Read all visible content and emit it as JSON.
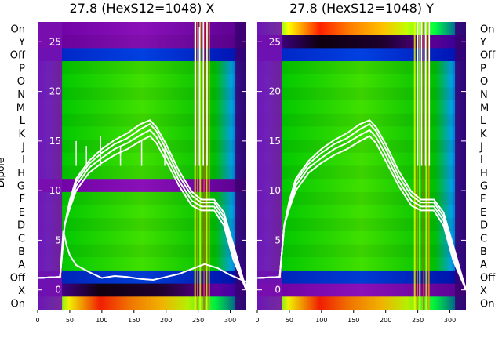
{
  "chart_data": {
    "type": "heatmap",
    "ylabel": "Dipole",
    "row_labels": [
      "On",
      "Y",
      "Off",
      "P",
      "O",
      "N",
      "M",
      "L",
      "K",
      "J",
      "I",
      "H",
      "G",
      "F",
      "E",
      "D",
      "C",
      "B",
      "A",
      "Off",
      "X",
      "On"
    ],
    "x_ticks": [
      0,
      50,
      100,
      150,
      200,
      250,
      300
    ],
    "xlim": [
      0,
      325
    ],
    "overlay_ylim": [
      -2,
      27
    ],
    "overlay_y_ticks": [
      0,
      5,
      10,
      15,
      20,
      25
    ],
    "colormap": [
      "#7a00a8",
      "#0000c8",
      "#0080ff",
      "#00c8ff",
      "#00d000",
      "#60e000",
      "#ffff00",
      "#ffa000",
      "#ff2000"
    ],
    "panels": [
      {
        "title": "27.8 (HexS12=1048) X",
        "strong_row": "X",
        "overlay_lines": [
          {
            "x": [
              0,
              35,
              42,
              50,
              60,
              80,
              100,
              120,
              140,
              160,
              175,
              185,
              200,
              220,
              240,
              255,
              265,
              275,
              290,
              305,
              325
            ],
            "y": [
              1.2,
              1.3,
              6.5,
              8.2,
              10.0,
              11.8,
              12.8,
              13.6,
              14.2,
              15.0,
              15.5,
              14.8,
              13.0,
              10.5,
              8.5,
              8.0,
              8.0,
              8.0,
              6.5,
              3.0,
              0.0
            ]
          },
          {
            "x": [
              0,
              35,
              42,
              50,
              60,
              80,
              100,
              120,
              140,
              160,
              175,
              185,
              200,
              220,
              240,
              255,
              265,
              275,
              290,
              305,
              325
            ],
            "y": [
              1.2,
              1.3,
              6.5,
              8.5,
              10.5,
              12.3,
              13.3,
              14.2,
              14.8,
              15.6,
              16.1,
              15.4,
              13.6,
              11.0,
              9.0,
              8.4,
              8.4,
              8.4,
              7.0,
              3.5,
              0.0
            ]
          },
          {
            "x": [
              0,
              35,
              42,
              50,
              60,
              80,
              100,
              120,
              140,
              160,
              175,
              185,
              200,
              220,
              240,
              255,
              265,
              275,
              290,
              305,
              325
            ],
            "y": [
              1.2,
              1.3,
              6.5,
              8.8,
              10.9,
              12.7,
              13.8,
              14.7,
              15.3,
              16.2,
              16.7,
              16.0,
              14.2,
              11.5,
              9.5,
              8.8,
              8.8,
              8.8,
              7.4,
              4.0,
              0.0
            ]
          },
          {
            "x": [
              0,
              35,
              42,
              50,
              60,
              80,
              100,
              120,
              140,
              160,
              175,
              185,
              200,
              220,
              240,
              255,
              265,
              275,
              290,
              305,
              325
            ],
            "y": [
              1.2,
              1.3,
              6.5,
              9.0,
              11.2,
              13.0,
              14.2,
              15.1,
              15.8,
              16.7,
              17.1,
              16.4,
              14.7,
              12.0,
              9.9,
              9.1,
              9.1,
              9.1,
              7.8,
              4.5,
              0.0
            ]
          },
          {
            "x": [
              0,
              35,
              40,
              45,
              50,
              60,
              80,
              100,
              120,
              140,
              160,
              180,
              200,
              220,
              240,
              260,
              280,
              300,
              325
            ],
            "y": [
              1.2,
              1.3,
              6.0,
              4.5,
              3.5,
              2.5,
              1.8,
              1.2,
              1.4,
              1.3,
              1.1,
              1.0,
              1.3,
              1.6,
              2.1,
              2.6,
              2.2,
              1.5,
              0.8
            ]
          }
        ],
        "spikes": [
          {
            "x": 60,
            "height": 2.5
          },
          {
            "x": 76,
            "height": 2.0
          },
          {
            "x": 98,
            "height": 3.0
          },
          {
            "x": 129,
            "height": 2.0
          },
          {
            "x": 162,
            "height": 2.5
          },
          {
            "x": 198,
            "height": 2.0
          },
          {
            "x": 246,
            "height": 17.0
          },
          {
            "x": 252,
            "height": 14.0
          },
          {
            "x": 258,
            "height": 16.0
          },
          {
            "x": 264,
            "height": 15.0
          }
        ]
      },
      {
        "title": "27.8 (HexS12=1048) Y",
        "strong_row": "Y",
        "overlay_lines": [
          {
            "x": [
              0,
              35,
              42,
              50,
              60,
              80,
              100,
              120,
              140,
              160,
              175,
              185,
              200,
              220,
              240,
              255,
              265,
              275,
              290,
              305,
              325
            ],
            "y": [
              1.2,
              1.3,
              6.5,
              8.2,
              10.0,
              11.8,
              12.8,
              13.6,
              14.2,
              15.0,
              15.5,
              14.8,
              13.0,
              10.5,
              8.5,
              8.0,
              8.0,
              8.0,
              6.5,
              3.0,
              0.0
            ]
          },
          {
            "x": [
              0,
              35,
              42,
              50,
              60,
              80,
              100,
              120,
              140,
              160,
              175,
              185,
              200,
              220,
              240,
              255,
              265,
              275,
              290,
              305,
              325
            ],
            "y": [
              1.2,
              1.3,
              6.5,
              8.5,
              10.5,
              12.3,
              13.3,
              14.2,
              14.8,
              15.6,
              16.1,
              15.4,
              13.6,
              11.0,
              9.0,
              8.4,
              8.4,
              8.4,
              7.0,
              3.5,
              0.0
            ]
          },
          {
            "x": [
              0,
              35,
              42,
              50,
              60,
              80,
              100,
              120,
              140,
              160,
              175,
              185,
              200,
              220,
              240,
              255,
              265,
              275,
              290,
              305,
              325
            ],
            "y": [
              1.2,
              1.3,
              6.5,
              8.8,
              10.9,
              12.7,
              13.8,
              14.7,
              15.3,
              16.2,
              16.7,
              16.0,
              14.2,
              11.5,
              9.5,
              8.8,
              8.8,
              8.8,
              7.4,
              4.0,
              0.0
            ]
          },
          {
            "x": [
              0,
              35,
              42,
              50,
              60,
              80,
              100,
              120,
              140,
              160,
              175,
              185,
              200,
              220,
              240,
              255,
              265,
              275,
              290,
              305,
              325
            ],
            "y": [
              1.2,
              1.3,
              6.5,
              9.0,
              11.2,
              13.0,
              14.2,
              15.1,
              15.8,
              16.7,
              17.1,
              16.4,
              14.7,
              12.0,
              9.9,
              9.1,
              9.1,
              9.1,
              7.8,
              4.5,
              0.0
            ]
          }
        ],
        "spikes": [
          {
            "x": 250,
            "height": 18.0
          },
          {
            "x": 256,
            "height": 17.0
          },
          {
            "x": 262,
            "height": 19.5
          },
          {
            "x": 268,
            "height": 18.0
          }
        ]
      }
    ]
  }
}
